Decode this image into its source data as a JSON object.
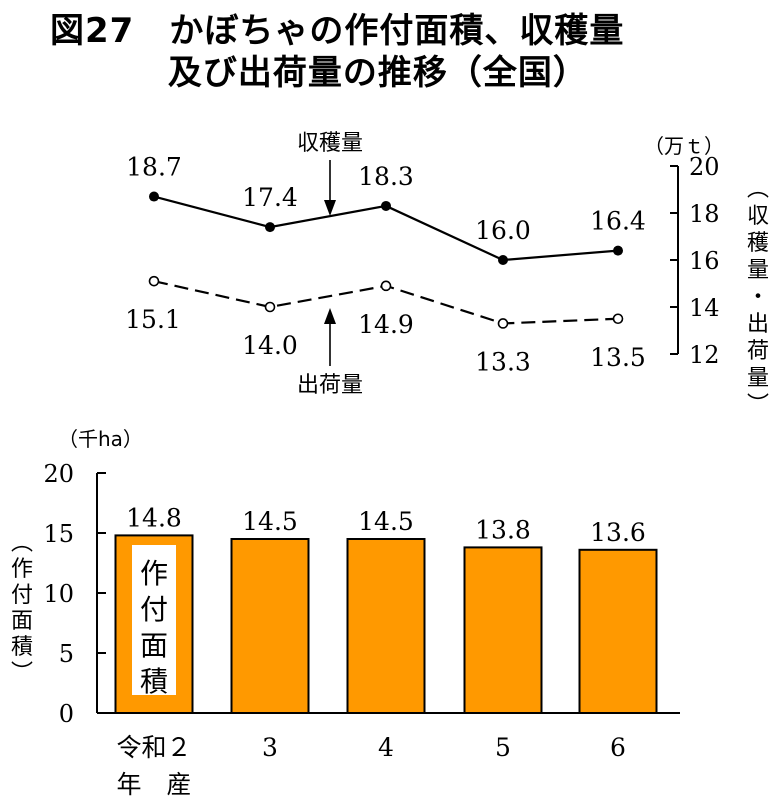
{
  "title": "図27　かぼちゃの作付面積、収穫量\n　　　 及び出荷量の推移（全国）",
  "chart_data": [
    {
      "type": "line",
      "categories": [
        "令和２",
        "3",
        "4",
        "5",
        "6"
      ],
      "series": [
        {
          "name": "収穫量",
          "values": [
            18.7,
            17.4,
            18.3,
            16.0,
            16.4
          ],
          "labels": [
            "18.7",
            "17.4",
            "18.3",
            "16.0",
            "16.4"
          ],
          "marker": "filled",
          "line": "solid"
        },
        {
          "name": "出荷量",
          "values": [
            15.1,
            14.0,
            14.9,
            13.3,
            13.5
          ],
          "labels": [
            "15.1",
            "14.0",
            "14.9",
            "13.3",
            "13.5"
          ],
          "marker": "open",
          "line": "dashed"
        }
      ],
      "yaxis_side": "right",
      "ylim": [
        12,
        20
      ],
      "yticks": [
        "12",
        "14",
        "16",
        "18",
        "20"
      ],
      "unit": "（万ｔ）",
      "ylabel": "（収穫量・出荷量）",
      "grid": false
    },
    {
      "type": "bar",
      "categories": [
        "令和２",
        "3",
        "4",
        "5",
        "6"
      ],
      "values": [
        14.8,
        14.5,
        14.5,
        13.8,
        13.6
      ],
      "labels": [
        "14.8",
        "14.5",
        "14.5",
        "13.8",
        "13.6"
      ],
      "bar_label": "作付面積",
      "ylim": [
        0,
        20
      ],
      "yticks": [
        "0",
        "5",
        "10",
        "15",
        "20"
      ],
      "unit": "（千ha）",
      "ylabel": "（作付面積）",
      "bar_color": "#FF9900",
      "grid": false
    }
  ],
  "xaxis": {
    "year_prefix": "令和２",
    "year_suffix": "年　産"
  },
  "colors": {
    "bar_fill": "#FF9900",
    "line": "#000000"
  }
}
